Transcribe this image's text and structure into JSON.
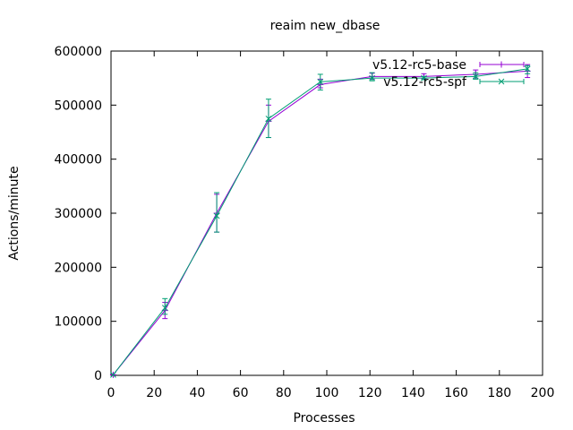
{
  "chart_data": {
    "type": "line",
    "title": "reaim new_dbase",
    "xlabel": "Processes",
    "ylabel": "Actions/minute",
    "xlim": [
      0,
      200
    ],
    "ylim": [
      0,
      600000
    ],
    "xticks": [
      0,
      20,
      40,
      60,
      80,
      100,
      120,
      140,
      160,
      180,
      200
    ],
    "yticks": [
      0,
      100000,
      200000,
      300000,
      400000,
      500000,
      600000
    ],
    "xtick_labels": [
      "0",
      "20",
      "40",
      "60",
      "80",
      "100",
      "120",
      "140",
      "160",
      "180",
      "200"
    ],
    "ytick_labels": [
      "0",
      "100000",
      "200000",
      "300000",
      "400000",
      "500000",
      "600000"
    ],
    "grid": false,
    "legend_position": "top-right",
    "x": [
      1,
      25,
      49,
      73,
      97,
      121,
      145,
      169,
      193
    ],
    "series": [
      {
        "name": "v5.12-rc5-base",
        "color": "#9400d3",
        "marker": "plus",
        "values": [
          1000,
          120000,
          300000,
          470000,
          538000,
          553000,
          553000,
          557000,
          563000
        ],
        "err_low": [
          1000,
          105000,
          265000,
          440000,
          532000,
          548000,
          549000,
          550000,
          551000
        ],
        "err_high": [
          1000,
          135000,
          335000,
          500000,
          548000,
          559000,
          558000,
          565000,
          575000
        ]
      },
      {
        "name": "v5.12-rc5-spf",
        "color": "#009e73",
        "marker": "cross",
        "values": [
          1000,
          125000,
          295000,
          475000,
          543000,
          550000,
          550000,
          553000,
          567000
        ],
        "err_low": [
          1000,
          113000,
          265000,
          440000,
          528000,
          545000,
          547000,
          548000,
          558000
        ],
        "err_high": [
          1000,
          142000,
          338000,
          511000,
          557000,
          560000,
          553000,
          560000,
          573000
        ]
      }
    ]
  }
}
